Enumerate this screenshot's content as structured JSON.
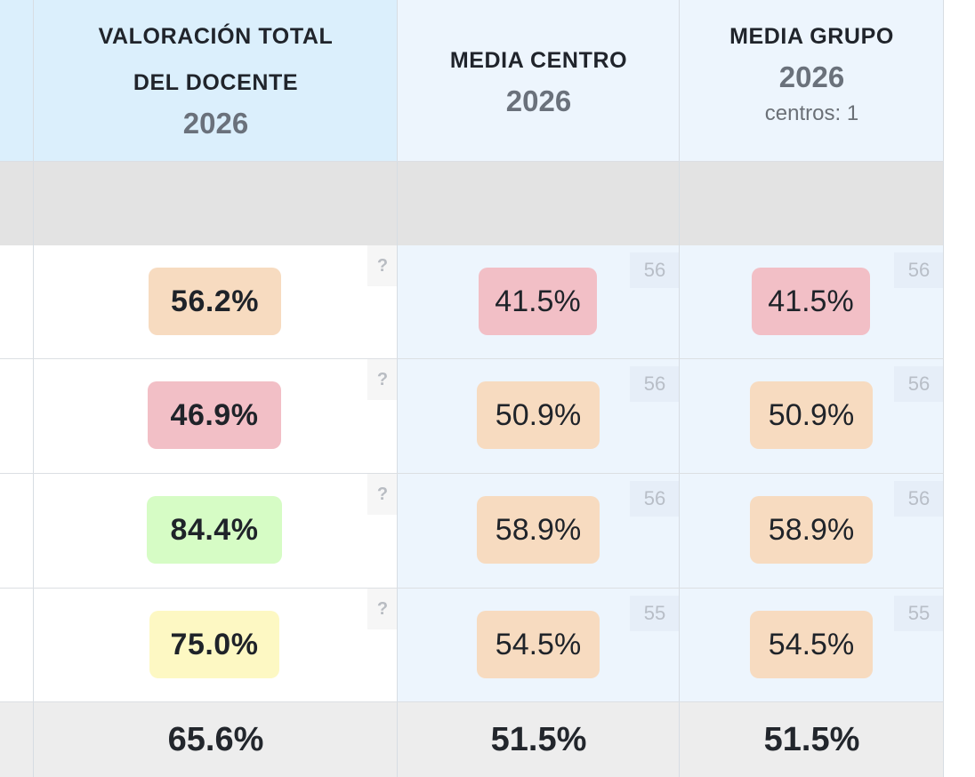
{
  "header": {
    "teacher_column": {
      "title_line1": "VALORACIÓN TOTAL",
      "title_line2": "DEL DOCENTE",
      "year": "2026"
    },
    "center_column": {
      "title": "MEDIA CENTRO",
      "year": "2026"
    },
    "group_column": {
      "title": "MEDIA GRUPO",
      "year": "2026",
      "subtitle": "centros: 1"
    }
  },
  "colors": {
    "red": "#f2bfc6",
    "orange": "#f7dbc0",
    "green": "#d6fcc5",
    "yellow": "#fdf8c3"
  },
  "rows": [
    {
      "teacher": {
        "value": "56.2%",
        "color": "orange",
        "hint": "?"
      },
      "center": {
        "value": "41.5%",
        "color": "red",
        "count": "56"
      },
      "group": {
        "value": "41.5%",
        "color": "red",
        "count": "56"
      }
    },
    {
      "teacher": {
        "value": "46.9%",
        "color": "red",
        "hint": "?"
      },
      "center": {
        "value": "50.9%",
        "color": "orange",
        "count": "56"
      },
      "group": {
        "value": "50.9%",
        "color": "orange",
        "count": "56"
      }
    },
    {
      "teacher": {
        "value": "84.4%",
        "color": "green",
        "hint": "?"
      },
      "center": {
        "value": "58.9%",
        "color": "orange",
        "count": "56"
      },
      "group": {
        "value": "58.9%",
        "color": "orange",
        "count": "56"
      }
    },
    {
      "teacher": {
        "value": "75.0%",
        "color": "yellow",
        "hint": "?"
      },
      "center": {
        "value": "54.5%",
        "color": "orange",
        "count": "55"
      },
      "group": {
        "value": "54.5%",
        "color": "orange",
        "count": "55"
      }
    }
  ],
  "totals": {
    "teacher": "65.6%",
    "center": "51.5%",
    "group": "51.5%"
  }
}
